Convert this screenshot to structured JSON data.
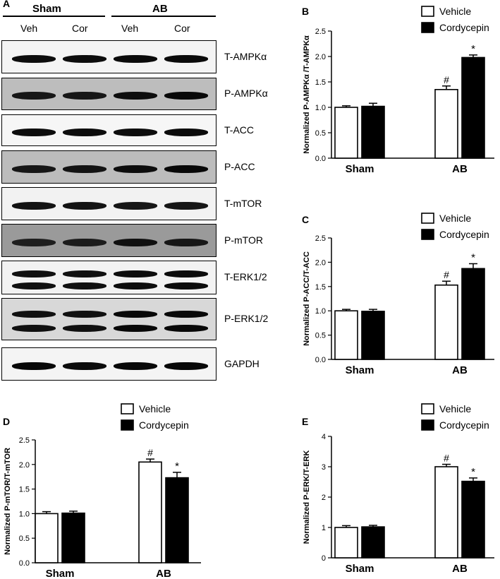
{
  "panelA": {
    "letter": "A",
    "groups": [
      "Sham",
      "AB"
    ],
    "lanes": [
      "Veh",
      "Cor",
      "Veh",
      "Cor"
    ],
    "blots": [
      {
        "name": "T-AMPKα",
        "bg": "#f4f4f4",
        "bands": 1,
        "dark": [
          0.85,
          0.85,
          0.9,
          0.9
        ]
      },
      {
        "name": "P-AMPKα",
        "bg": "#bdbdbd",
        "bands": 1,
        "dark": [
          0.7,
          0.7,
          0.85,
          0.95
        ]
      },
      {
        "name": "T-ACC",
        "bg": "#f6f6f6",
        "bands": 1,
        "dark": [
          0.85,
          0.85,
          0.85,
          0.9
        ]
      },
      {
        "name": "P-ACC",
        "bg": "#bcbcbc",
        "bands": 1,
        "dark": [
          0.7,
          0.75,
          0.85,
          0.95
        ]
      },
      {
        "name": "T-mTOR",
        "bg": "#f2f2f2",
        "bands": 1,
        "dark": [
          0.75,
          0.75,
          0.7,
          0.7
        ]
      },
      {
        "name": "P-mTOR",
        "bg": "#9a9a9a",
        "bands": 1,
        "dark": [
          0.55,
          0.6,
          0.8,
          0.7
        ]
      },
      {
        "name": "T-ERK1/2",
        "bg": "#f2f2f2",
        "bands": 2,
        "dark": [
          0.8,
          0.8,
          0.85,
          0.9
        ]
      },
      {
        "name": "P-ERK1/2",
        "bg": "#d8d8d8",
        "bands": 2,
        "dark": [
          0.8,
          0.8,
          0.95,
          0.95
        ]
      },
      {
        "name": "GAPDH",
        "bg": "#f4f4f4",
        "bands": 1,
        "dark": [
          0.95,
          0.9,
          0.95,
          0.95
        ]
      }
    ]
  },
  "legend": {
    "vehicle": "Vehicle",
    "cordycepin": "Cordycepin"
  },
  "colors": {
    "vehicle_fill": "#ffffff",
    "cordycepin_fill": "#000000",
    "stroke": "#000000"
  },
  "chart_data": [
    {
      "panel": "B",
      "type": "bar",
      "categories": [
        "Sham",
        "AB"
      ],
      "ylabel": "Normalized P-AMPKα /T-AMPKα",
      "ylim": [
        0,
        2.5
      ],
      "yticks": [
        "0.0",
        "0.5",
        "1.0",
        "1.5",
        "2.0",
        "2.5"
      ],
      "series": [
        {
          "name": "Vehicle",
          "values": [
            1.0,
            1.35
          ],
          "errors": [
            0.03,
            0.07
          ],
          "annotations": [
            "",
            "#"
          ]
        },
        {
          "name": "Cordycepin",
          "values": [
            1.02,
            1.98
          ],
          "errors": [
            0.06,
            0.05
          ],
          "annotations": [
            "",
            "*"
          ]
        }
      ]
    },
    {
      "panel": "C",
      "type": "bar",
      "categories": [
        "Sham",
        "AB"
      ],
      "ylabel": "Normalized P-ACC/T-ACC",
      "ylim": [
        0,
        2.5
      ],
      "yticks": [
        "0.0",
        "0.5",
        "1.0",
        "1.5",
        "2.0",
        "2.5"
      ],
      "series": [
        {
          "name": "Vehicle",
          "values": [
            1.0,
            1.53
          ],
          "errors": [
            0.03,
            0.08
          ],
          "annotations": [
            "",
            "#"
          ]
        },
        {
          "name": "Cordycepin",
          "values": [
            0.99,
            1.87
          ],
          "errors": [
            0.04,
            0.1
          ],
          "annotations": [
            "",
            "*"
          ]
        }
      ]
    },
    {
      "panel": "D",
      "type": "bar",
      "categories": [
        "Sham",
        "AB"
      ],
      "ylabel": "Normalized P-mTOR/T-mTOR",
      "ylim": [
        0,
        2.5
      ],
      "yticks": [
        "0.0",
        "0.5",
        "1.0",
        "1.5",
        "2.0",
        "2.5"
      ],
      "series": [
        {
          "name": "Vehicle",
          "values": [
            1.0,
            2.05
          ],
          "errors": [
            0.04,
            0.06
          ],
          "annotations": [
            "",
            "#"
          ]
        },
        {
          "name": "Cordycepin",
          "values": [
            1.01,
            1.73
          ],
          "errors": [
            0.04,
            0.11
          ],
          "annotations": [
            "",
            "*"
          ]
        }
      ]
    },
    {
      "panel": "E",
      "type": "bar",
      "categories": [
        "Sham",
        "AB"
      ],
      "ylabel": "Normalized P-ERK/T-ERK",
      "ylim": [
        0,
        4
      ],
      "yticks": [
        "0",
        "1",
        "2",
        "3",
        "4"
      ],
      "series": [
        {
          "name": "Vehicle",
          "values": [
            1.0,
            3.0
          ],
          "errors": [
            0.06,
            0.08
          ],
          "annotations": [
            "",
            "#"
          ]
        },
        {
          "name": "Cordycepin",
          "values": [
            1.02,
            2.52
          ],
          "errors": [
            0.05,
            0.11
          ],
          "annotations": [
            "",
            "*"
          ]
        }
      ]
    }
  ]
}
